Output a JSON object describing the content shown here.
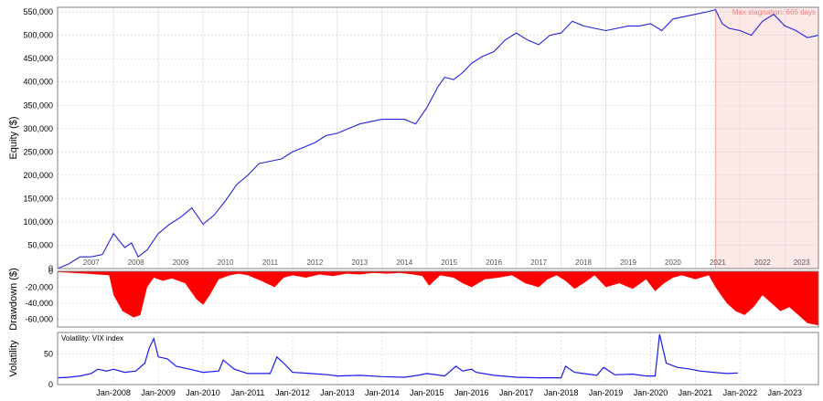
{
  "colors": {
    "equity_line": "#2222dd",
    "drawdown_fill": "#ff0000",
    "volatility_line": "#1a1ae6",
    "stagnation_shade": "#fde8e8",
    "stagnation_text": "#f08080",
    "grid": "#cccccc",
    "year_separator": "#dddddd"
  },
  "chart_data": [
    {
      "type": "line",
      "ylabel": "Equity ($)",
      "ylim": [
        0,
        560000
      ],
      "yticks": [
        0,
        50000,
        100000,
        150000,
        200000,
        250000,
        300000,
        350000,
        400000,
        450000,
        500000,
        550000
      ],
      "ytick_labels": [
        "0",
        "50,000",
        "100,000",
        "150,000",
        "200,000",
        "250,000",
        "300,000",
        "350,000",
        "400,000",
        "450,000",
        "500,000",
        "550,000"
      ],
      "year_labels": [
        "2007",
        "2008",
        "2009",
        "2010",
        "2011",
        "2012",
        "2013",
        "2014",
        "2015",
        "2016",
        "2017",
        "2018",
        "2019",
        "2020",
        "2021",
        "2022",
        "2023"
      ],
      "xlim": [
        2006.75,
        2023.75
      ],
      "annotation": "Max stagnation: 666 days",
      "stagnation_range": [
        2021.45,
        2023.75
      ],
      "series": [
        {
          "x": [
            2006.75,
            2007.0,
            2007.25,
            2007.5,
            2007.75,
            2008.0,
            2008.25,
            2008.4,
            2008.55,
            2008.75,
            2009.0,
            2009.25,
            2009.5,
            2009.75,
            2010.0,
            2010.25,
            2010.5,
            2010.75,
            2011.0,
            2011.25,
            2011.5,
            2011.75,
            2012.0,
            2012.25,
            2012.5,
            2012.75,
            2013.0,
            2013.25,
            2013.5,
            2013.75,
            2014.0,
            2014.25,
            2014.5,
            2014.75,
            2015.0,
            2015.25,
            2015.4,
            2015.6,
            2015.8,
            2016.0,
            2016.25,
            2016.5,
            2016.75,
            2017.0,
            2017.25,
            2017.5,
            2017.75,
            2018.0,
            2018.25,
            2018.5,
            2018.75,
            2019.0,
            2019.25,
            2019.5,
            2019.75,
            2020.0,
            2020.25,
            2020.5,
            2020.75,
            2021.0,
            2021.25,
            2021.45,
            2021.6,
            2021.75,
            2022.0,
            2022.25,
            2022.5,
            2022.75,
            2023.0,
            2023.25,
            2023.5,
            2023.75
          ],
          "y": [
            0,
            10000,
            25000,
            25000,
            30000,
            75000,
            45000,
            55000,
            25000,
            40000,
            75000,
            95000,
            110000,
            130000,
            95000,
            115000,
            145000,
            180000,
            200000,
            225000,
            230000,
            235000,
            250000,
            260000,
            270000,
            285000,
            290000,
            300000,
            310000,
            315000,
            320000,
            320000,
            320000,
            310000,
            345000,
            390000,
            410000,
            405000,
            420000,
            440000,
            455000,
            465000,
            490000,
            505000,
            490000,
            480000,
            500000,
            505000,
            530000,
            520000,
            515000,
            510000,
            515000,
            520000,
            520000,
            525000,
            510000,
            535000,
            540000,
            545000,
            550000,
            555000,
            525000,
            515000,
            510000,
            500000,
            530000,
            545000,
            520000,
            510000,
            495000,
            500000
          ]
        }
      ]
    },
    {
      "type": "area",
      "ylabel": "Drawdown ($)",
      "ylim": [
        -70000,
        0
      ],
      "yticks": [
        0,
        -20000,
        -40000,
        -60000
      ],
      "ytick_labels": [
        "0",
        "-20,000",
        "-40,000",
        "-60,000"
      ],
      "xlim": [
        2006.75,
        2023.75
      ],
      "series": [
        {
          "x": [
            2006.75,
            2007.4,
            2007.9,
            2008.0,
            2008.2,
            2008.45,
            2008.6,
            2008.75,
            2008.9,
            2009.1,
            2009.3,
            2009.6,
            2009.85,
            2010.0,
            2010.15,
            2010.35,
            2010.6,
            2010.8,
            2011.0,
            2011.3,
            2011.6,
            2011.8,
            2012.0,
            2012.3,
            2012.6,
            2012.9,
            2013.2,
            2013.5,
            2013.8,
            2014.1,
            2014.4,
            2014.7,
            2014.9,
            2015.05,
            2015.3,
            2015.6,
            2015.8,
            2016.0,
            2016.3,
            2016.6,
            2016.9,
            2017.2,
            2017.5,
            2017.7,
            2017.9,
            2018.1,
            2018.3,
            2018.5,
            2018.75,
            2019.0,
            2019.3,
            2019.6,
            2019.9,
            2020.1,
            2020.3,
            2020.5,
            2020.7,
            2021.0,
            2021.3,
            2021.45,
            2021.7,
            2021.9,
            2022.1,
            2022.3,
            2022.5,
            2022.7,
            2022.9,
            2023.1,
            2023.3,
            2023.5,
            2023.75
          ],
          "y": [
            -1000,
            -3000,
            -5000,
            -30000,
            -50000,
            -58000,
            -55000,
            -20000,
            -8000,
            -12000,
            -9000,
            -15000,
            -35000,
            -42000,
            -30000,
            -10000,
            -5000,
            -3000,
            -5000,
            -12000,
            -20000,
            -8000,
            -5000,
            -8000,
            -4000,
            -6000,
            -3000,
            -4000,
            -2000,
            -3000,
            -2000,
            -4000,
            -6000,
            -18000,
            -5000,
            -8000,
            -15000,
            -20000,
            -10000,
            -8000,
            -5000,
            -15000,
            -20000,
            -10000,
            -5000,
            -12000,
            -22000,
            -15000,
            -5000,
            -20000,
            -15000,
            -22000,
            -10000,
            -25000,
            -15000,
            -8000,
            -5000,
            -10000,
            -5000,
            -20000,
            -40000,
            -50000,
            -55000,
            -45000,
            -30000,
            -40000,
            -50000,
            -45000,
            -55000,
            -65000,
            -68000
          ]
        }
      ]
    },
    {
      "type": "line",
      "ylabel": "Volatility",
      "ylim": [
        0,
        85
      ],
      "yticks": [
        0,
        50
      ],
      "ytick_labels": [
        "0",
        "50"
      ],
      "xticks": [
        2008,
        2009,
        2010,
        2011,
        2012,
        2013,
        2014,
        2015,
        2016,
        2017,
        2018,
        2019,
        2020,
        2021,
        2022,
        2023
      ],
      "xtick_labels": [
        "Jan-2008",
        "Jan-2009",
        "Jan-2010",
        "Jan-2011",
        "Jan-2012",
        "Jan-2013",
        "Jan-2014",
        "Jan-2015",
        "Jan-2016",
        "Jan-2017",
        "Jan-2018",
        "Jan-2019",
        "Jan-2020",
        "Jan-2021",
        "Jan-2022",
        "Jan-2023"
      ],
      "xlim": [
        2006.75,
        2023.75
      ],
      "series": [
        {
          "name": "Volatility: VIX index",
          "x": [
            2006.75,
            2007.0,
            2007.25,
            2007.5,
            2007.65,
            2007.85,
            2008.0,
            2008.25,
            2008.5,
            2008.7,
            2008.8,
            2008.9,
            2009.0,
            2009.2,
            2009.4,
            2009.7,
            2010.0,
            2010.35,
            2010.45,
            2010.7,
            2011.0,
            2011.5,
            2011.65,
            2011.8,
            2012.0,
            2012.4,
            2012.8,
            2013.0,
            2013.5,
            2014.0,
            2014.5,
            2014.8,
            2015.0,
            2015.4,
            2015.65,
            2015.8,
            2016.0,
            2016.1,
            2016.5,
            2017.0,
            2017.5,
            2018.0,
            2018.1,
            2018.3,
            2018.8,
            2018.95,
            2019.2,
            2019.6,
            2019.9,
            2020.1,
            2020.2,
            2020.35,
            2020.6,
            2020.9,
            2021.1,
            2021.4,
            2021.7,
            2021.95
          ],
          "y": [
            11,
            12,
            14,
            18,
            25,
            22,
            25,
            20,
            22,
            35,
            60,
            75,
            45,
            42,
            30,
            25,
            20,
            22,
            40,
            25,
            18,
            18,
            45,
            35,
            20,
            18,
            16,
            14,
            15,
            13,
            12,
            15,
            18,
            14,
            30,
            22,
            25,
            20,
            15,
            12,
            11,
            11,
            30,
            20,
            15,
            28,
            16,
            17,
            14,
            14,
            82,
            35,
            28,
            25,
            22,
            20,
            18,
            19
          ]
        }
      ]
    }
  ]
}
